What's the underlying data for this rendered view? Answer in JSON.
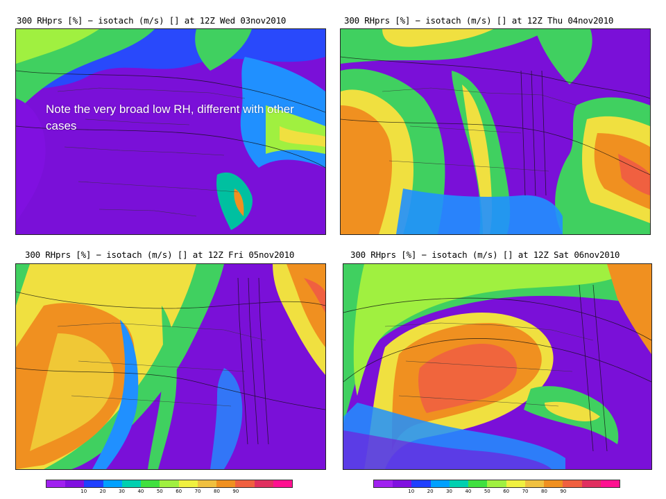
{
  "panels": [
    {
      "title": "300 RHprs [%] − isotach (m/s) [] at 12Z Wed 03nov2010"
    },
    {
      "title": "300 RHprs [%] − isotach (m/s) [] at 12Z Thu 04nov2010"
    },
    {
      "title": "300 RHprs [%] − isotach (m/s) [] at 12Z Fri 05nov2010"
    },
    {
      "title": "300 RHprs [%] − isotach (m/s) [] at 12Z Sat 06nov2010"
    }
  ],
  "annotation": "Note the very broad low RH, different with other cases",
  "colorbar": {
    "ticks": [
      "10",
      "20",
      "30",
      "40",
      "50",
      "60",
      "70",
      "80",
      "90"
    ],
    "colors": [
      "#a020f0",
      "#8010e0",
      "#2040ff",
      "#00a0ff",
      "#00d0b0",
      "#40e040",
      "#a0f040",
      "#f0f040",
      "#f0c040",
      "#f09020",
      "#f06040",
      "#e03060",
      "#ff1090"
    ]
  }
}
